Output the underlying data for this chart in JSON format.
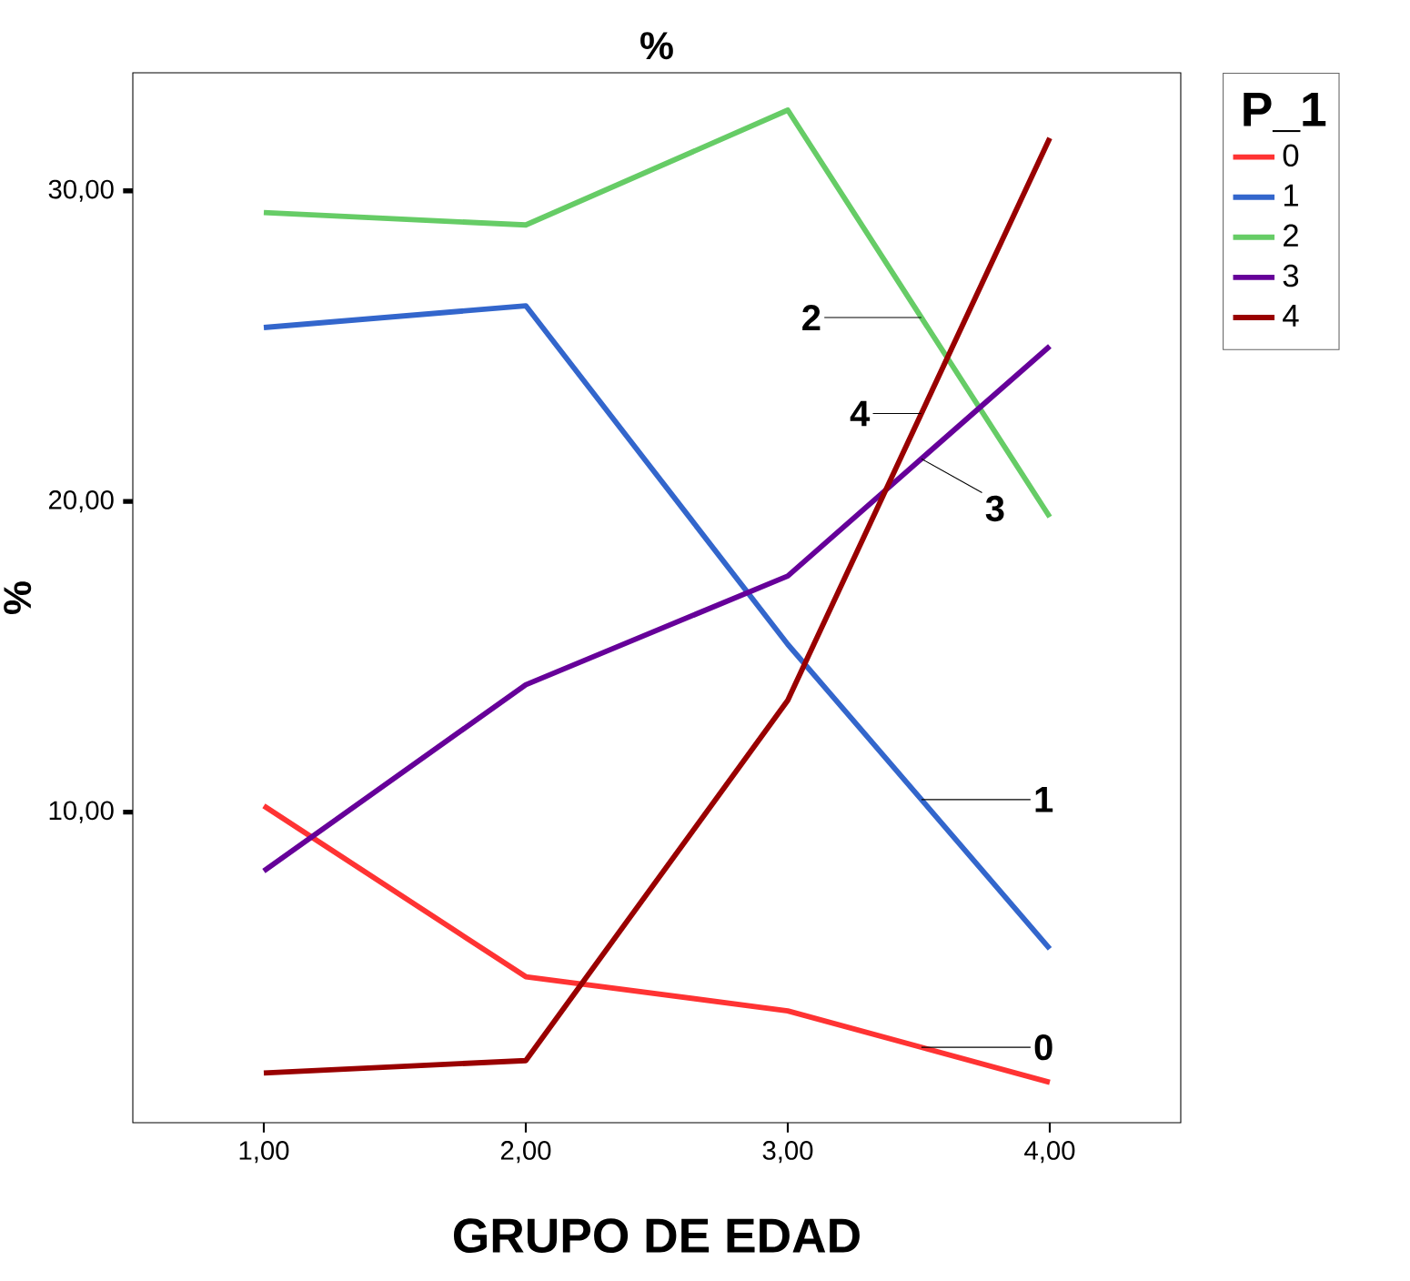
{
  "chart_data": {
    "type": "line",
    "title": "%",
    "xlabel": "GRUPO DE EDAD",
    "ylabel": "%",
    "legend_title": "P_1",
    "x": [
      1,
      2,
      3,
      4
    ],
    "series": [
      {
        "name": "0",
        "color": "#ff3333",
        "values": [
          10.2,
          4.7,
          3.6,
          1.3
        ]
      },
      {
        "name": "1",
        "color": "#3366cc",
        "values": [
          25.6,
          26.3,
          15.4,
          5.6
        ]
      },
      {
        "name": "2",
        "color": "#66cc66",
        "values": [
          29.3,
          28.9,
          32.6,
          19.5
        ]
      },
      {
        "name": "3",
        "color": "#660099",
        "values": [
          8.1,
          14.1,
          17.6,
          25.0
        ]
      },
      {
        "name": "4",
        "color": "#990000",
        "values": [
          1.6,
          2.0,
          13.6,
          31.7
        ]
      }
    ],
    "xlim": [
      0.5,
      4.5
    ],
    "ylim": [
      0,
      33.8
    ],
    "xticks": [
      {
        "value": 1,
        "label": "1,00"
      },
      {
        "value": 2,
        "label": "2,00"
      },
      {
        "value": 3,
        "label": "3,00"
      },
      {
        "value": 4,
        "label": "4,00"
      }
    ],
    "yticks": [
      {
        "value": 10,
        "label": "10,00"
      },
      {
        "value": 20,
        "label": "20,00"
      },
      {
        "value": 30,
        "label": "30,00"
      }
    ],
    "grid": false,
    "legend": "top right",
    "marker": "none",
    "line_style": "solid"
  }
}
